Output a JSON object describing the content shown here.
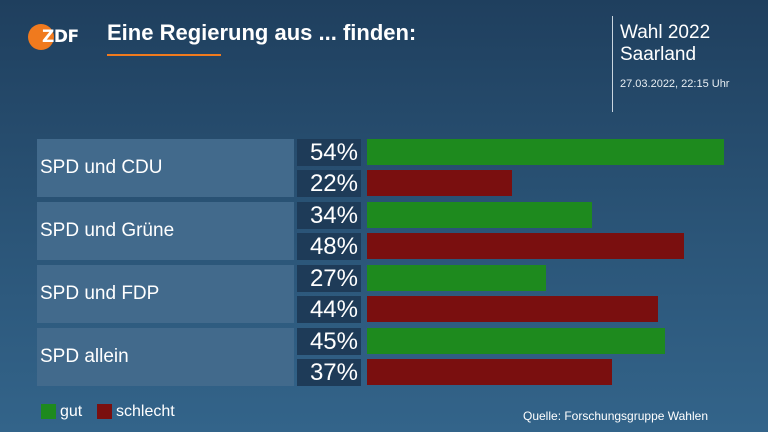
{
  "header": {
    "logo_text": "ZDF",
    "title": "Eine Regierung aus ... finden:",
    "election_line1": "Wahl 2022",
    "election_line2": "Saarland",
    "timestamp": "27.03.2022, 22:15 Uhr"
  },
  "chart_data": {
    "type": "bar",
    "orientation": "horizontal",
    "categories": [
      "SPD und CDU",
      "SPD und Grüne",
      "SPD und FDP",
      "SPD allein"
    ],
    "series": [
      {
        "name": "gut",
        "color": "#1e8a1e",
        "values": [
          54,
          34,
          27,
          45
        ],
        "labels": [
          "54%",
          "34%",
          "27%",
          "45%"
        ]
      },
      {
        "name": "schlecht",
        "color": "#7a0f0f",
        "values": [
          22,
          48,
          44,
          37
        ],
        "labels": [
          "22%",
          "48%",
          "44%",
          "37%"
        ]
      }
    ],
    "xlim": [
      0,
      54
    ],
    "legend": "bottom-left",
    "grid": false
  },
  "legend": {
    "gut": "gut",
    "schlecht": "schlecht"
  },
  "source": "Quelle: Forschungsgruppe Wahlen"
}
